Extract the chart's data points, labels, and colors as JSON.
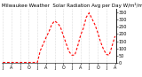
{
  "title": "Milwaukee Weather  Solar Radiation Avg per Day W/m²/minute",
  "values": [
    5,
    5,
    5,
    5,
    5,
    5,
    5,
    5,
    5,
    5,
    5,
    5,
    5,
    85,
    130,
    175,
    215,
    265,
    290,
    275,
    250,
    190,
    135,
    80,
    55,
    55,
    115,
    190,
    240,
    315,
    345,
    305,
    265,
    210,
    145,
    95,
    60,
    55,
    120,
    185
  ],
  "line_color": "#FF0000",
  "bg_color": "#FFFFFF",
  "grid_color": "#BBBBBB",
  "ylim": [
    0,
    370
  ],
  "yticks": [
    0,
    50,
    100,
    150,
    200,
    250,
    300,
    350
  ],
  "ytick_labels": [
    "0",
    "50",
    "100",
    "150",
    "200",
    "250",
    "300",
    "350"
  ],
  "title_fontsize": 4.0,
  "tick_fontsize": 3.5,
  "linewidth": 0.8
}
